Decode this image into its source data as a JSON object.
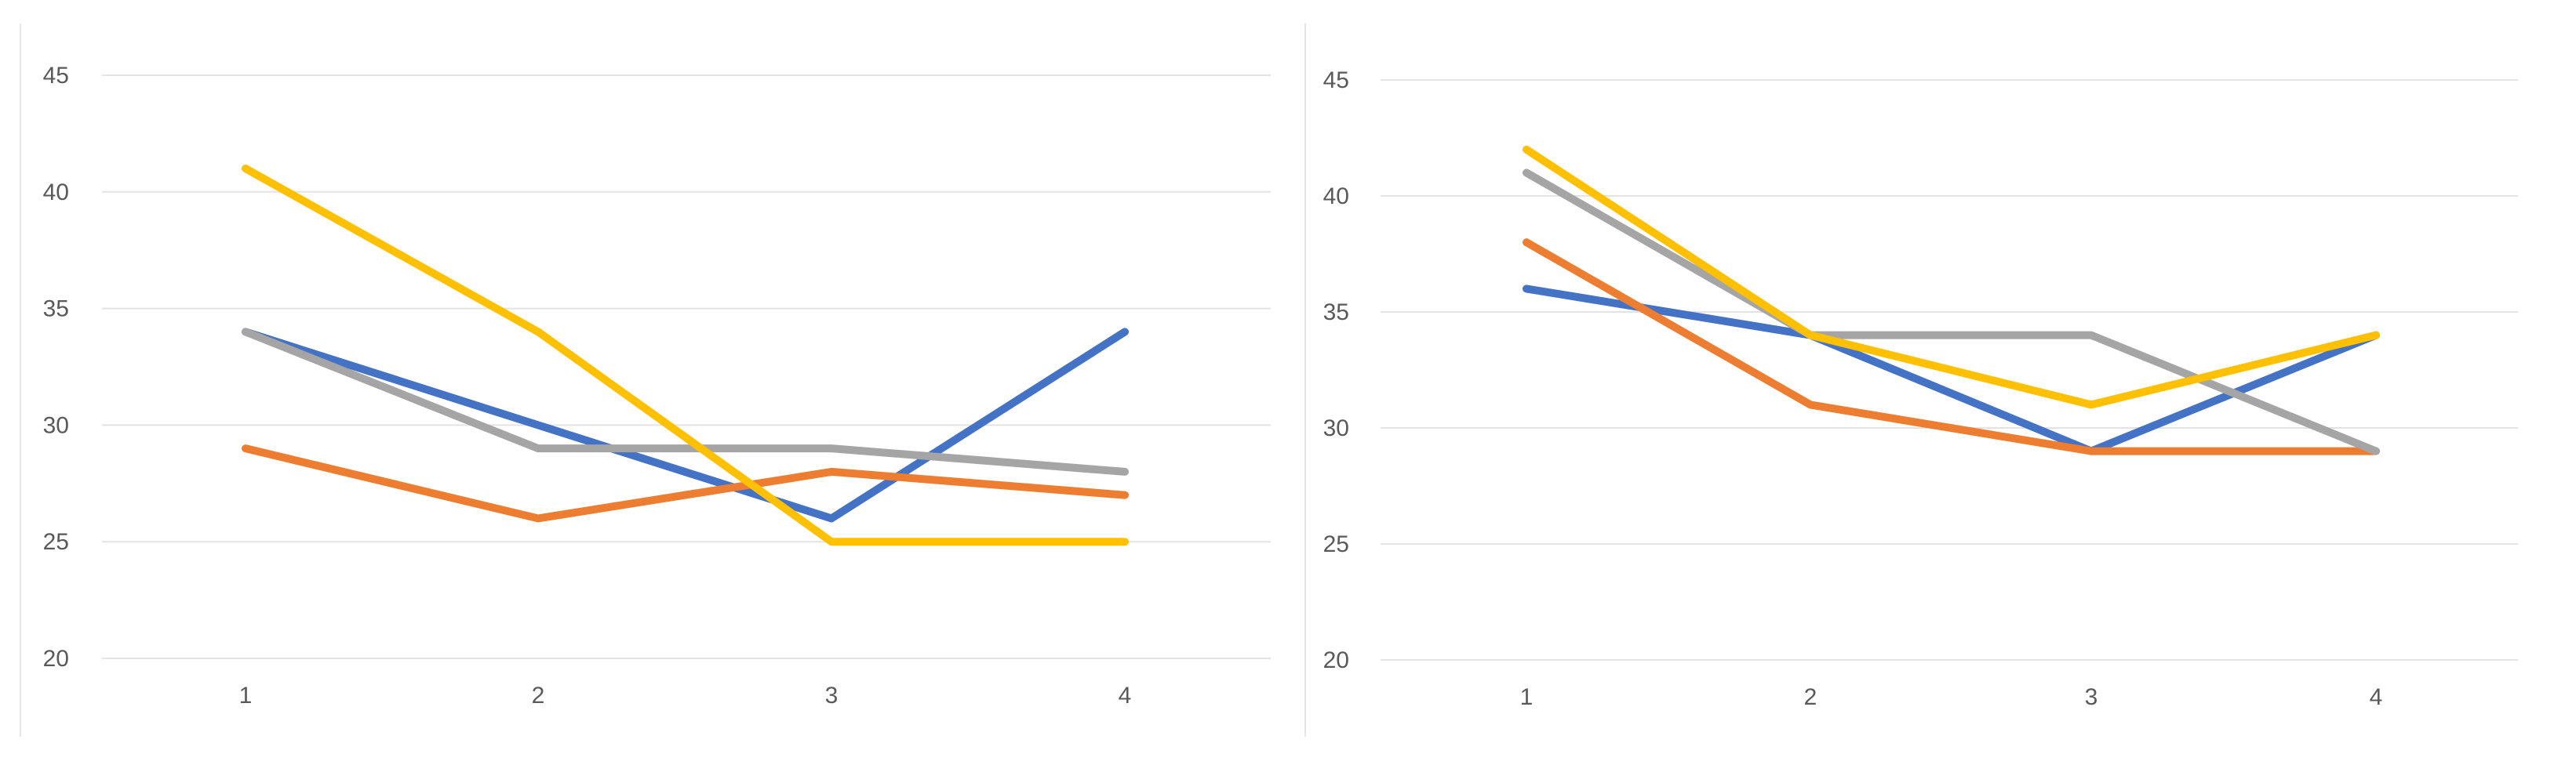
{
  "chart_data": [
    {
      "type": "line",
      "categories": [
        "1",
        "2",
        "3",
        "4"
      ],
      "ylim": [
        20,
        45
      ],
      "yticks": [
        "20",
        "25",
        "30",
        "35",
        "40",
        "45"
      ],
      "grid": true,
      "legend": "none",
      "series": [
        {
          "color": "#4472C4",
          "values": [
            34,
            30,
            26,
            34
          ]
        },
        {
          "color": "#ED7D31",
          "values": [
            29,
            26,
            28,
            27
          ]
        },
        {
          "color": "#A5A5A5",
          "values": [
            34,
            29,
            29,
            28
          ]
        },
        {
          "color": "#FFC000",
          "values": [
            41,
            34,
            25,
            25
          ]
        }
      ]
    },
    {
      "type": "line",
      "categories": [
        "1",
        "2",
        "3",
        "4"
      ],
      "ylim": [
        20,
        45
      ],
      "yticks": [
        "20",
        "25",
        "30",
        "35",
        "40",
        "45"
      ],
      "grid": true,
      "legend": "none",
      "series": [
        {
          "color": "#4472C4",
          "values": [
            36,
            34,
            29,
            34
          ]
        },
        {
          "color": "#ED7D31",
          "values": [
            38,
            31,
            29,
            29
          ]
        },
        {
          "color": "#A5A5A5",
          "values": [
            41,
            34,
            34,
            29
          ]
        },
        {
          "color": "#FFC000",
          "values": [
            42,
            34,
            31,
            34
          ]
        }
      ]
    }
  ]
}
